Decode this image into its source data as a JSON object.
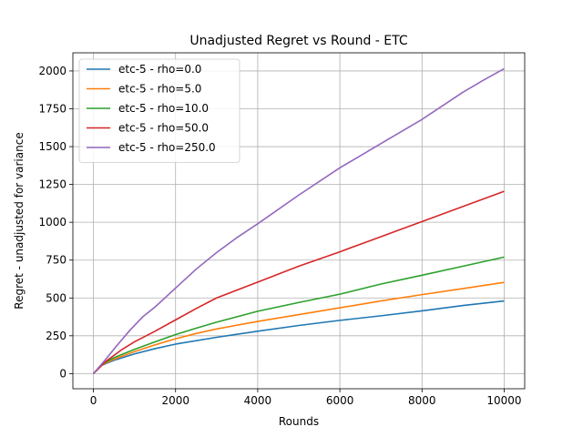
{
  "chart_data": {
    "type": "line",
    "title": "Unadjusted Regret vs Round - ETC",
    "xlabel": "Rounds",
    "ylabel": "Regret - unadjusted for variance",
    "xlim": [
      -500,
      10500
    ],
    "ylim": [
      -100,
      2120
    ],
    "xticks": [
      0,
      2000,
      4000,
      6000,
      8000,
      10000
    ],
    "yticks": [
      0,
      250,
      500,
      750,
      1000,
      1250,
      1500,
      1750,
      2000
    ],
    "grid": true,
    "legend_position": "top-left",
    "series": [
      {
        "name": "etc-5 - rho=0.0",
        "color": "#1f77b4",
        "points": [
          [
            0,
            0
          ],
          [
            200,
            55
          ],
          [
            500,
            88
          ],
          [
            1000,
            130
          ],
          [
            1500,
            165
          ],
          [
            2000,
            195
          ],
          [
            3000,
            240
          ],
          [
            4000,
            280
          ],
          [
            5000,
            318
          ],
          [
            6000,
            352
          ],
          [
            7000,
            382
          ],
          [
            8000,
            415
          ],
          [
            9000,
            450
          ],
          [
            10000,
            480
          ]
        ]
      },
      {
        "name": "etc-5 - rho=5.0",
        "color": "#ff7f0e",
        "points": [
          [
            0,
            0
          ],
          [
            200,
            58
          ],
          [
            500,
            95
          ],
          [
            1000,
            145
          ],
          [
            1500,
            190
          ],
          [
            2000,
            230
          ],
          [
            2500,
            265
          ],
          [
            3000,
            295
          ],
          [
            4000,
            345
          ],
          [
            5000,
            390
          ],
          [
            6000,
            435
          ],
          [
            7000,
            480
          ],
          [
            8000,
            522
          ],
          [
            9000,
            562
          ],
          [
            10000,
            603
          ]
        ]
      },
      {
        "name": "etc-5 - rho=10.0",
        "color": "#2ca02c",
        "points": [
          [
            0,
            0
          ],
          [
            200,
            60
          ],
          [
            500,
            105
          ],
          [
            1000,
            160
          ],
          [
            1500,
            210
          ],
          [
            2000,
            258
          ],
          [
            2500,
            300
          ],
          [
            3000,
            340
          ],
          [
            4000,
            412
          ],
          [
            5000,
            470
          ],
          [
            6000,
            525
          ],
          [
            7000,
            592
          ],
          [
            8000,
            650
          ],
          [
            9000,
            710
          ],
          [
            10000,
            770
          ]
        ]
      },
      {
        "name": "etc-5 - rho=50.0",
        "color": "#d62728",
        "points": [
          [
            0,
            0
          ],
          [
            300,
            80
          ],
          [
            700,
            160
          ],
          [
            1000,
            210
          ],
          [
            1500,
            280
          ],
          [
            2000,
            355
          ],
          [
            2500,
            430
          ],
          [
            3000,
            500
          ],
          [
            4000,
            605
          ],
          [
            5000,
            710
          ],
          [
            6000,
            805
          ],
          [
            7000,
            905
          ],
          [
            8000,
            1005
          ],
          [
            9000,
            1105
          ],
          [
            10000,
            1205
          ]
        ]
      },
      {
        "name": "etc-5 - rho=250.0",
        "color": "#9467bd",
        "points": [
          [
            0,
            0
          ],
          [
            300,
            95
          ],
          [
            600,
            195
          ],
          [
            900,
            290
          ],
          [
            1200,
            375
          ],
          [
            1500,
            440
          ],
          [
            2000,
            565
          ],
          [
            2500,
            690
          ],
          [
            3000,
            800
          ],
          [
            3500,
            900
          ],
          [
            4000,
            990
          ],
          [
            5000,
            1180
          ],
          [
            6000,
            1360
          ],
          [
            6500,
            1440
          ],
          [
            7000,
            1520
          ],
          [
            8000,
            1680
          ],
          [
            9000,
            1860
          ],
          [
            9500,
            1940
          ],
          [
            10000,
            2015
          ]
        ]
      }
    ]
  }
}
